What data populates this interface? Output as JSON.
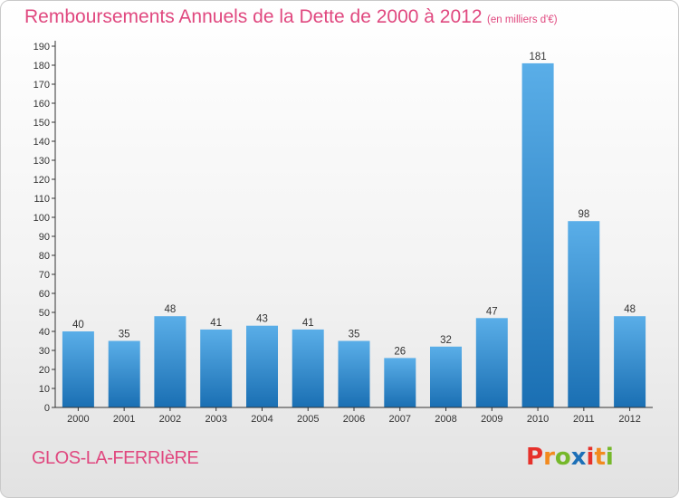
{
  "header": {
    "title": "Remboursements Annuels de la Dette de 2000 à 2012",
    "subtitle": "(en milliers d'€)"
  },
  "footer": {
    "commune": "GLOS-LA-FERRIèRE",
    "logo_letters": [
      "P",
      "r",
      "o",
      "x",
      "i",
      "t",
      "i"
    ],
    "logo_colors": [
      "#e6312b",
      "#f28a1e",
      "#76b82a",
      "#1d70b7",
      "#e6312b",
      "#f28a1e",
      "#76b82a"
    ]
  },
  "colors": {
    "bar_light": "#5aaee8",
    "bar_dark": "#1a6fb3",
    "text_accent": "#e0487f"
  },
  "chart_data": {
    "type": "bar",
    "title": "Remboursements Annuels de la Dette de 2000 à 2012",
    "subtitle": "(en milliers d'€)",
    "categories": [
      "2000",
      "2001",
      "2002",
      "2003",
      "2004",
      "2005",
      "2006",
      "2007",
      "2008",
      "2009",
      "2010",
      "2011",
      "2012"
    ],
    "values": [
      40,
      35,
      48,
      41,
      43,
      41,
      35,
      26,
      32,
      47,
      181,
      98,
      48
    ],
    "ylim": [
      0,
      190
    ],
    "yticks": [
      0,
      10,
      20,
      30,
      40,
      50,
      60,
      70,
      80,
      90,
      100,
      110,
      120,
      130,
      140,
      150,
      160,
      170,
      180,
      190
    ],
    "grid": false,
    "data_labels": true
  }
}
